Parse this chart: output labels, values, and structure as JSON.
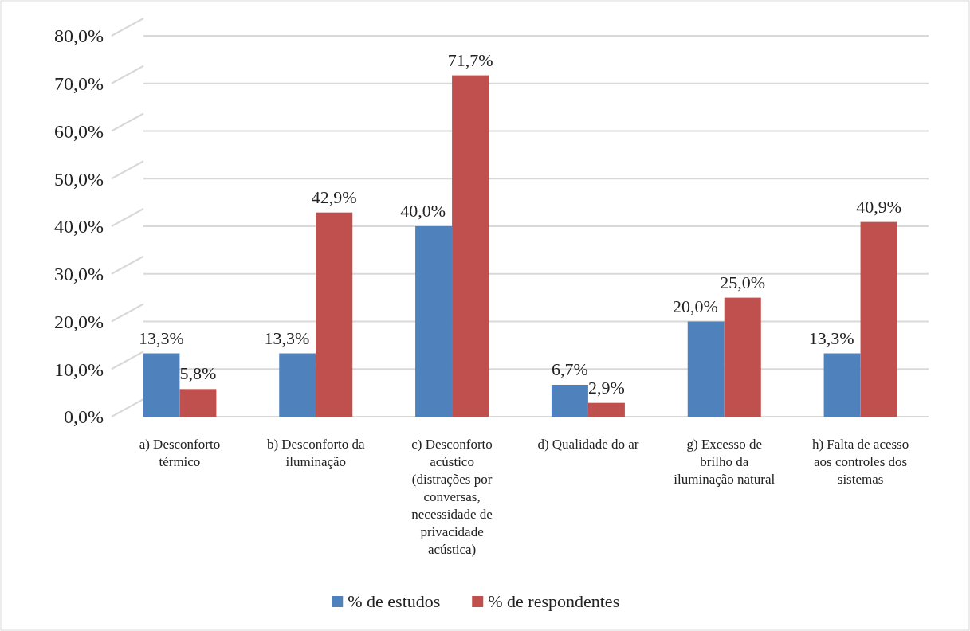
{
  "chart_data": {
    "type": "bar",
    "categories": [
      "a) Desconforto térmico",
      "b) Desconforto da iluminação",
      "c) Desconforto acústico (distrações por conversas, necessidade de privacidade acústica)",
      "d) Qualidade do ar",
      "g) Excesso de brilho da iluminação natural",
      "h) Falta de acesso aos controles dos sistemas"
    ],
    "series": [
      {
        "name": "% de estudos",
        "color": "#4f81bd",
        "values": [
          13.3,
          13.3,
          40.0,
          6.7,
          20.0,
          13.3
        ],
        "value_labels": [
          "13,3%",
          "13,3%",
          "40,0%",
          "6,7%",
          "20,0%",
          "13,3%"
        ]
      },
      {
        "name": "% de respondentes",
        "color": "#c0504d",
        "values": [
          5.8,
          42.9,
          71.7,
          2.9,
          25.0,
          40.9
        ],
        "value_labels": [
          "5,8%",
          "42,9%",
          "71,7%",
          "2,9%",
          "25,0%",
          "40,9%"
        ]
      }
    ],
    "ylim": [
      0,
      80
    ],
    "yticks": [
      {
        "value": 0,
        "label": "0,0%"
      },
      {
        "value": 10,
        "label": "10,0%"
      },
      {
        "value": 20,
        "label": "20,0%"
      },
      {
        "value": 30,
        "label": "30,0%"
      },
      {
        "value": 40,
        "label": "40,0%"
      },
      {
        "value": 50,
        "label": "50,0%"
      },
      {
        "value": 60,
        "label": "60,0%"
      },
      {
        "value": 70,
        "label": "70,0%"
      },
      {
        "value": 80,
        "label": "80,0%"
      }
    ],
    "grid": "y",
    "legend": "bottom"
  }
}
